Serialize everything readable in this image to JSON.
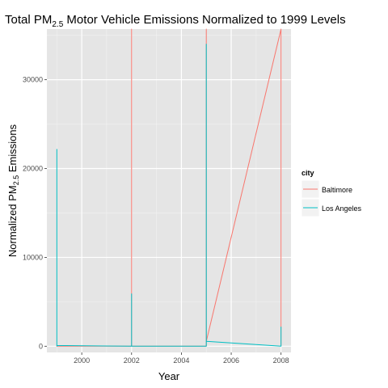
{
  "chart_data": {
    "type": "line",
    "title": {
      "prefix": "Total PM",
      "subscript": "2.5",
      "suffix": " Motor Vehicle Emissions Normalized to 1999 Levels"
    },
    "xlabel": "Year",
    "ylabel": {
      "prefix": "Normalized PM",
      "subscript": "2.5",
      "suffix": " Emissions"
    },
    "xlim": [
      1998.6,
      2008.4
    ],
    "ylim": [
      -700,
      35700
    ],
    "x_ticks": [
      2000,
      2002,
      2004,
      2006,
      2008
    ],
    "x_tick_labels": [
      "2000",
      "2002",
      "2004",
      "2006",
      "2008"
    ],
    "y_ticks": [
      0,
      10000,
      20000,
      30000
    ],
    "y_tick_labels": [
      "0",
      "10000",
      "20000",
      "30000"
    ],
    "grid": true,
    "legend": {
      "title": "city",
      "placement": "right"
    },
    "series": [
      {
        "name": "Baltimore",
        "color": "#F8766D",
        "points": [
          [
            1999,
            0
          ],
          [
            1999,
            80
          ],
          [
            1999,
            0
          ],
          [
            2002,
            0
          ],
          [
            2002,
            35700
          ],
          [
            2002,
            0
          ],
          [
            2005,
            0
          ],
          [
            2005,
            35700
          ],
          [
            2005,
            550
          ],
          [
            2008,
            35700
          ],
          [
            2008,
            0
          ]
        ]
      },
      {
        "name": "Los Angeles",
        "color": "#00BFC4",
        "points": [
          [
            1999,
            22200
          ],
          [
            1999,
            0
          ],
          [
            1999,
            80
          ],
          [
            2002,
            0
          ],
          [
            2002,
            5900
          ],
          [
            2002,
            0
          ],
          [
            2005,
            0
          ],
          [
            2005,
            34000
          ],
          [
            2005,
            550
          ],
          [
            2008,
            0
          ],
          [
            2008,
            2200
          ]
        ]
      }
    ]
  }
}
